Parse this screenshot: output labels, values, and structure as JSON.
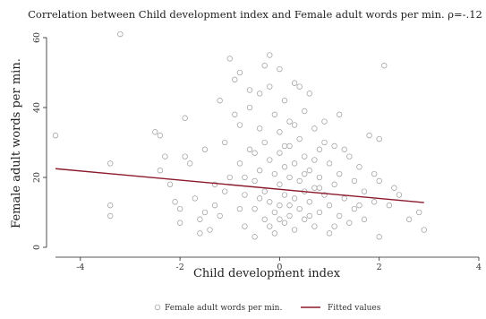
{
  "chart_data": {
    "type": "scatter",
    "title": "Correlation between Child development index and Female adult words per min. ρ=-.12",
    "xlabel": "Child development index",
    "ylabel": "Female adult words per min.",
    "xlim": [
      -4.5,
      4
    ],
    "ylim": [
      0,
      60
    ],
    "xticks": [
      "-4",
      "-2",
      "0",
      "2",
      "4"
    ],
    "yticks": [
      "0",
      "20",
      "40",
      "60"
    ],
    "grid": false,
    "legend_position": "bottom",
    "series": [
      {
        "name": "Female adult words per min.",
        "type": "scatter",
        "color": "#9a9a9a",
        "points": [
          [
            -4.5,
            32
          ],
          [
            -3.4,
            24
          ],
          [
            -3.4,
            12
          ],
          [
            -3.4,
            9
          ],
          [
            -3.2,
            61
          ],
          [
            -2.5,
            33
          ],
          [
            -2.4,
            32
          ],
          [
            -2.4,
            22
          ],
          [
            -2.3,
            26
          ],
          [
            -2.2,
            18
          ],
          [
            -2.1,
            13
          ],
          [
            -2.0,
            11
          ],
          [
            -2.0,
            7
          ],
          [
            -1.9,
            37
          ],
          [
            -1.9,
            26
          ],
          [
            -1.8,
            24
          ],
          [
            -1.7,
            14
          ],
          [
            -1.6,
            4
          ],
          [
            -1.5,
            28
          ],
          [
            -1.5,
            10
          ],
          [
            -1.4,
            5
          ],
          [
            -1.3,
            18
          ],
          [
            -1.2,
            42
          ],
          [
            -1.2,
            9
          ],
          [
            -1.1,
            30
          ],
          [
            -1.0,
            20
          ],
          [
            -1.0,
            54
          ],
          [
            -0.9,
            48
          ],
          [
            -0.8,
            50
          ],
          [
            -0.8,
            35
          ],
          [
            -0.8,
            24
          ],
          [
            -0.7,
            15
          ],
          [
            -0.7,
            6
          ],
          [
            -0.6,
            40
          ],
          [
            -0.6,
            28
          ],
          [
            -0.5,
            19
          ],
          [
            -0.5,
            11
          ],
          [
            -0.5,
            3
          ],
          [
            -0.4,
            44
          ],
          [
            -0.4,
            34
          ],
          [
            -0.4,
            22
          ],
          [
            -0.3,
            16
          ],
          [
            -0.3,
            8
          ],
          [
            -0.3,
            30
          ],
          [
            -0.2,
            55
          ],
          [
            -0.2,
            46
          ],
          [
            -0.2,
            25
          ],
          [
            -0.2,
            13
          ],
          [
            -0.1,
            38
          ],
          [
            -0.1,
            21
          ],
          [
            -0.1,
            10
          ],
          [
            -0.1,
            4
          ],
          [
            0.0,
            51
          ],
          [
            0.0,
            33
          ],
          [
            0.0,
            27
          ],
          [
            0.0,
            18
          ],
          [
            0.0,
            12
          ],
          [
            0.1,
            42
          ],
          [
            0.1,
            23
          ],
          [
            0.1,
            15
          ],
          [
            0.1,
            7
          ],
          [
            0.2,
            36
          ],
          [
            0.2,
            29
          ],
          [
            0.2,
            20
          ],
          [
            0.2,
            9
          ],
          [
            0.3,
            47
          ],
          [
            0.3,
            24
          ],
          [
            0.3,
            14
          ],
          [
            0.3,
            5
          ],
          [
            0.4,
            31
          ],
          [
            0.4,
            19
          ],
          [
            0.4,
            11
          ],
          [
            0.5,
            39
          ],
          [
            0.5,
            26
          ],
          [
            0.5,
            16
          ],
          [
            0.5,
            8
          ],
          [
            0.6,
            44
          ],
          [
            0.6,
            22
          ],
          [
            0.6,
            13
          ],
          [
            0.7,
            34
          ],
          [
            0.7,
            25
          ],
          [
            0.7,
            17
          ],
          [
            0.7,
            6
          ],
          [
            0.8,
            28
          ],
          [
            0.8,
            20
          ],
          [
            0.8,
            10
          ],
          [
            0.9,
            36
          ],
          [
            0.9,
            15
          ],
          [
            1.0,
            24
          ],
          [
            1.0,
            12
          ],
          [
            1.0,
            4
          ],
          [
            1.1,
            29
          ],
          [
            1.1,
            18
          ],
          [
            1.2,
            38
          ],
          [
            1.2,
            21
          ],
          [
            1.2,
            9
          ],
          [
            1.3,
            14
          ],
          [
            1.4,
            26
          ],
          [
            1.4,
            7
          ],
          [
            1.5,
            19
          ],
          [
            1.5,
            11
          ],
          [
            1.6,
            23
          ],
          [
            1.7,
            16
          ],
          [
            1.7,
            8
          ],
          [
            1.8,
            32
          ],
          [
            1.9,
            13
          ],
          [
            2.0,
            31
          ],
          [
            2.0,
            19
          ],
          [
            2.0,
            3
          ],
          [
            2.1,
            52
          ],
          [
            2.2,
            12
          ],
          [
            2.4,
            15
          ],
          [
            2.6,
            8
          ],
          [
            2.8,
            10
          ],
          [
            2.9,
            5
          ],
          [
            -0.3,
            52
          ],
          [
            -0.6,
            45
          ],
          [
            -0.9,
            38
          ],
          [
            0.4,
            46
          ],
          [
            0.9,
            30
          ],
          [
            -1.6,
            8
          ],
          [
            -1.1,
            16
          ],
          [
            -0.5,
            27
          ],
          [
            0.2,
            12
          ],
          [
            0.6,
            9
          ],
          [
            1.1,
            6
          ],
          [
            1.3,
            28
          ],
          [
            -0.7,
            20
          ],
          [
            0.0,
            8
          ],
          [
            0.3,
            35
          ],
          [
            -0.4,
            14
          ],
          [
            0.8,
            17
          ],
          [
            1.6,
            12
          ],
          [
            -1.3,
            12
          ],
          [
            -0.2,
            6
          ],
          [
            0.5,
            21
          ],
          [
            0.1,
            29
          ],
          [
            -0.8,
            11
          ],
          [
            1.9,
            21
          ],
          [
            2.3,
            17
          ]
        ]
      },
      {
        "name": "Fitted values",
        "type": "line",
        "color": "#8b1a2b",
        "points": [
          [
            -4.5,
            22.5
          ],
          [
            2.9,
            12.8
          ]
        ]
      }
    ]
  }
}
